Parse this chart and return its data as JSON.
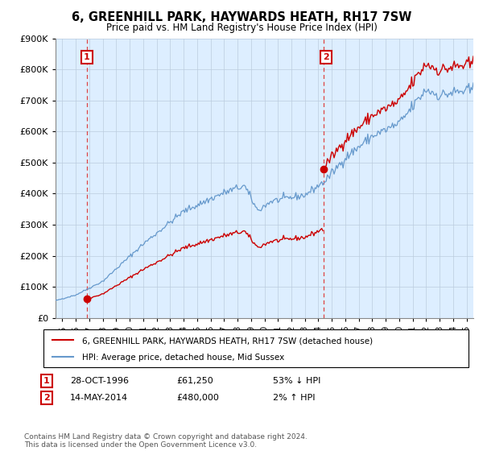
{
  "title": "6, GREENHILL PARK, HAYWARDS HEATH, RH17 7SW",
  "subtitle": "Price paid vs. HM Land Registry's House Price Index (HPI)",
  "ylim": [
    0,
    900000
  ],
  "yticks": [
    0,
    100000,
    200000,
    300000,
    400000,
    500000,
    600000,
    700000,
    800000,
    900000
  ],
  "ytick_labels": [
    "£0",
    "£100K",
    "£200K",
    "£300K",
    "£400K",
    "£500K",
    "£600K",
    "£700K",
    "£800K",
    "£900K"
  ],
  "sale1_date": 1996.83,
  "sale1_price": 61250,
  "sale1_label": "1",
  "sale2_date": 2014.37,
  "sale2_price": 480000,
  "sale2_label": "2",
  "hpi_color": "#6699cc",
  "price_color": "#cc0000",
  "dot_color": "#cc0000",
  "vline_color": "#dd4444",
  "grid_color": "#bbccdd",
  "plot_bg_color": "#ddeeff",
  "legend_line1": "6, GREENHILL PARK, HAYWARDS HEATH, RH17 7SW (detached house)",
  "legend_line2": "HPI: Average price, detached house, Mid Sussex",
  "annotation1_date": "28-OCT-1996",
  "annotation1_price": "£61,250",
  "annotation1_hpi": "53% ↓ HPI",
  "annotation2_date": "14-MAY-2014",
  "annotation2_price": "£480,000",
  "annotation2_hpi": "2% ↑ HPI",
  "footer": "Contains HM Land Registry data © Crown copyright and database right 2024.\nThis data is licensed under the Open Government Licence v3.0.",
  "xmin": 1994.5,
  "xmax": 2025.5
}
